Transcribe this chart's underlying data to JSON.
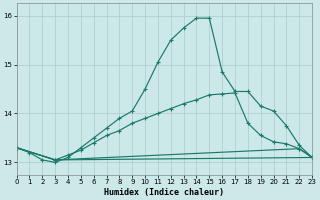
{
  "xlabel": "Humidex (Indice chaleur)",
  "xlim": [
    0,
    23
  ],
  "ylim": [
    12.75,
    16.25
  ],
  "yticks": [
    13,
    14,
    15,
    16
  ],
  "xticks": [
    0,
    1,
    2,
    3,
    4,
    5,
    6,
    7,
    8,
    9,
    10,
    11,
    12,
    13,
    14,
    15,
    16,
    17,
    18,
    19,
    20,
    21,
    22,
    23
  ],
  "bg_color": "#cce8e8",
  "grid_color": "#aacccc",
  "line_color": "#1a7a6a",
  "line1_x": [
    0,
    1,
    2,
    3,
    4,
    5,
    6,
    7,
    8,
    9,
    10,
    11,
    12,
    13,
    14,
    15,
    16,
    17,
    18,
    19,
    20,
    21,
    22,
    23
  ],
  "line1_y": [
    13.3,
    13.2,
    13.05,
    13.0,
    13.1,
    13.3,
    13.5,
    13.7,
    13.9,
    14.05,
    14.5,
    15.05,
    15.5,
    15.75,
    15.95,
    15.95,
    14.85,
    14.45,
    14.45,
    14.15,
    14.05,
    13.75,
    13.35,
    13.1
  ],
  "line2_x": [
    0,
    3,
    4,
    5,
    6,
    7,
    8,
    9,
    10,
    11,
    12,
    13,
    14,
    15,
    16,
    17,
    18,
    19,
    20,
    21,
    22,
    23
  ],
  "line2_y": [
    13.3,
    13.05,
    13.15,
    13.25,
    13.4,
    13.55,
    13.65,
    13.8,
    13.9,
    14.0,
    14.1,
    14.2,
    14.28,
    14.38,
    14.4,
    14.42,
    13.8,
    13.55,
    13.42,
    13.38,
    13.28,
    13.1
  ],
  "line3_x": [
    0,
    3,
    23
  ],
  "line3_y": [
    13.3,
    13.05,
    13.1
  ],
  "line4_x": [
    0,
    3,
    22,
    23
  ],
  "line4_y": [
    13.3,
    13.05,
    13.28,
    13.1
  ],
  "figsize": [
    3.2,
    2.0
  ],
  "dpi": 100
}
